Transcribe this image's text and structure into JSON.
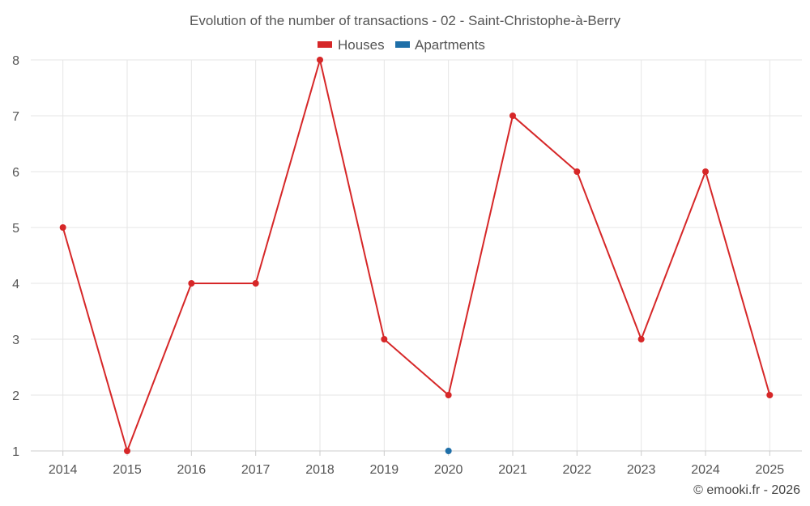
{
  "chart_data": {
    "type": "line",
    "title": "Evolution of the number of transactions - 02 - Saint-Christophe-à-Berry",
    "categories": [
      "2014",
      "2015",
      "2016",
      "2017",
      "2018",
      "2019",
      "2020",
      "2021",
      "2022",
      "2023",
      "2024",
      "2025"
    ],
    "series": [
      {
        "name": "Houses",
        "color": "#d62728",
        "values": [
          5,
          1,
          4,
          4,
          8,
          3,
          2,
          7,
          6,
          3,
          6,
          2
        ]
      },
      {
        "name": "Apartments",
        "color": "#1f6fa8",
        "values": [
          null,
          null,
          null,
          null,
          null,
          null,
          1,
          null,
          null,
          null,
          null,
          null
        ]
      }
    ],
    "ylim": [
      1,
      8
    ],
    "yticks": [
      1,
      2,
      3,
      4,
      5,
      6,
      7,
      8
    ],
    "legend_position": "top-center",
    "grid": true
  },
  "credit": "© emooki.fr - 2026"
}
